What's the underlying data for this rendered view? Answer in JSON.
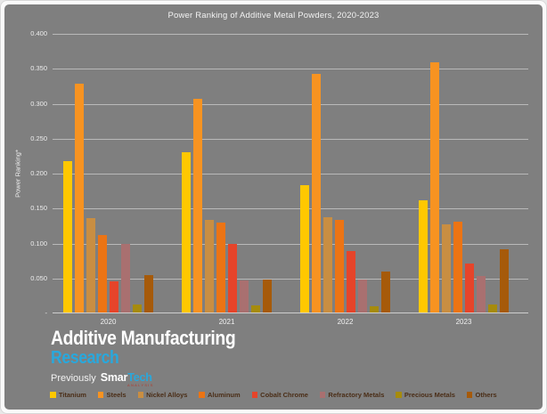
{
  "frame": {
    "background": "#7f7f7f",
    "gridline_color": "#b9b9b9",
    "axis_line_color": "#cfcfcf",
    "text_color": "#f2f2f2"
  },
  "chart_data": {
    "type": "bar",
    "title": "Power Ranking of Additive Metal Powders, 2020-2023",
    "xlabel": "",
    "ylabel": "Power Ranking*",
    "categories": [
      "2020",
      "2021",
      "2022",
      "2023"
    ],
    "series": [
      {
        "name": "Titanium",
        "color": "#FFC800",
        "values": [
          0.217,
          0.23,
          0.183,
          0.161
        ]
      },
      {
        "name": "Steels",
        "color": "#F79321",
        "values": [
          0.328,
          0.307,
          0.343,
          0.359
        ]
      },
      {
        "name": "Nickel Alloys",
        "color": "#C98E42",
        "values": [
          0.135,
          0.133,
          0.137,
          0.127
        ]
      },
      {
        "name": "Aluminum",
        "color": "#EC7414",
        "values": [
          0.111,
          0.129,
          0.133,
          0.13
        ]
      },
      {
        "name": "Cobalt Chrome",
        "color": "#E6442A",
        "values": [
          0.045,
          0.098,
          0.088,
          0.07
        ]
      },
      {
        "name": "Refractory Metals",
        "color": "#A97070",
        "values": [
          0.098,
          0.046,
          0.047,
          0.052
        ]
      },
      {
        "name": "Precious Metals",
        "color": "#A68B0D",
        "values": [
          0.012,
          0.01,
          0.009,
          0.011
        ]
      },
      {
        "name": "Others",
        "color": "#A65A0A",
        "values": [
          0.054,
          0.047,
          0.059,
          0.091
        ]
      }
    ],
    "ylim": [
      0,
      0.4
    ],
    "ytick_step": 0.05,
    "ytick_labels": [
      "0.400",
      "0.350",
      "0.300",
      "0.250",
      "0.200",
      "0.150",
      "0.100",
      "0.050",
      "-"
    ],
    "grid": true,
    "legend_position": "bottom"
  },
  "legend": {
    "text_color": "#4a2d16"
  },
  "branding": {
    "line1": "Additive Manufacturing",
    "line2": "Research",
    "previously": "Previously",
    "brand_white": "Smar",
    "brand_blue": "Tech",
    "brand_sub": "ANALYSIS",
    "blue": "#29A8DC"
  }
}
